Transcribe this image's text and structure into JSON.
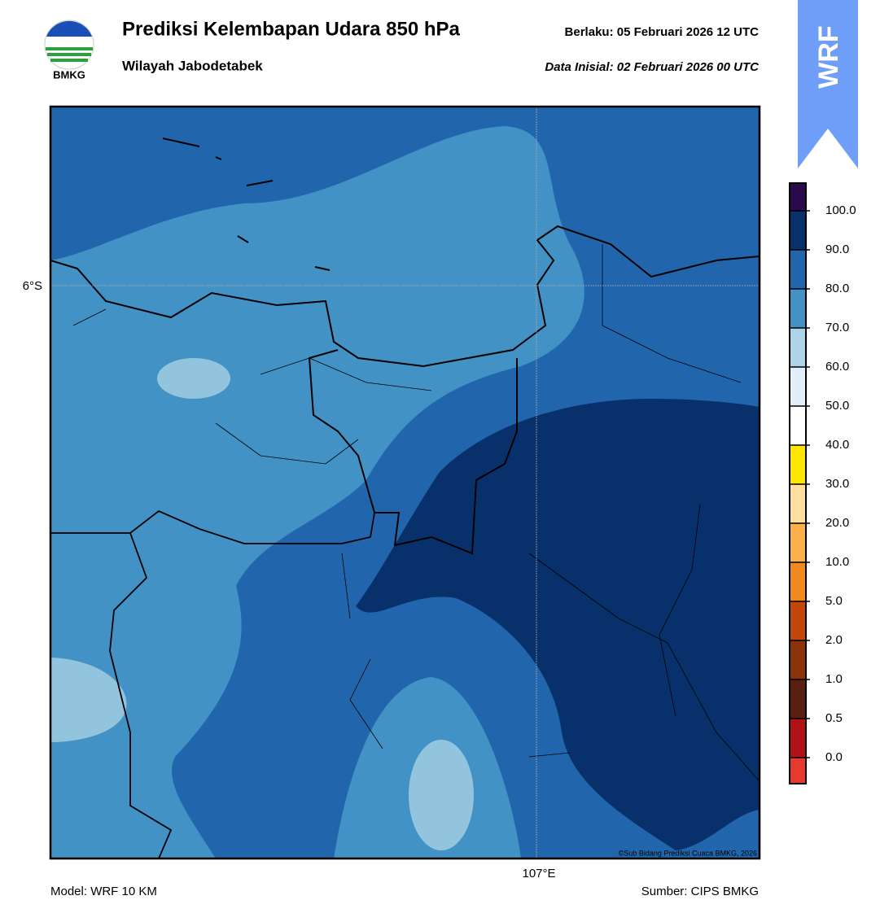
{
  "header": {
    "title": "Prediksi Kelembapan Udara 850 hPa",
    "subtitle": "Wilayah Jabodetabek",
    "valid": "Berlaku:  05 Februari 2026 12 UTC",
    "init": "Data Inisial:  02 Februari 2026 00 UTC",
    "logo": "BMKG",
    "badge": "WRF"
  },
  "map": {
    "lat_label": "6°S",
    "lon_label": "107°E",
    "credit": "©Sub Bidang Prediksi Cuaca BMKG, 2026"
  },
  "colorbar": {
    "ticks": [
      {
        "value": 0,
        "label": "0.0"
      },
      0.5,
      {
        "value": 1,
        "label": "1.0"
      },
      {
        "value": 2,
        "label": "2.0"
      },
      {
        "value": 5,
        "label": "5.0"
      },
      {
        "value": 10,
        "label": "10.0"
      },
      {
        "value": 20,
        "label": "20.0"
      },
      {
        "value": 30,
        "label": "30.0"
      },
      {
        "value": 40,
        "label": "40.0"
      },
      {
        "value": 50,
        "label": "50.0"
      },
      {
        "value": 60,
        "label": "60.0"
      },
      {
        "value": 70,
        "label": "70.0"
      },
      {
        "value": 80,
        "label": "80.0"
      },
      {
        "value": 90,
        "label": "90.0"
      },
      {
        "value": 100,
        "label": "100.0"
      }
    ],
    "colors": [
      "#e8392e",
      "#b01218",
      "#5a1f0e",
      "#8a330b",
      "#c4470a",
      "#f08a1e",
      "#fbb04a",
      "#fde0a0",
      "#ffe600",
      "#ffffff",
      "#e2eef8",
      "#aed3e8",
      "#4292c6",
      "#2166ac",
      "#08306b",
      "#2a0a4a"
    ]
  },
  "footer": {
    "model": "Model: WRF 10 KM",
    "source": "Sumber: CIPS BMKG"
  }
}
